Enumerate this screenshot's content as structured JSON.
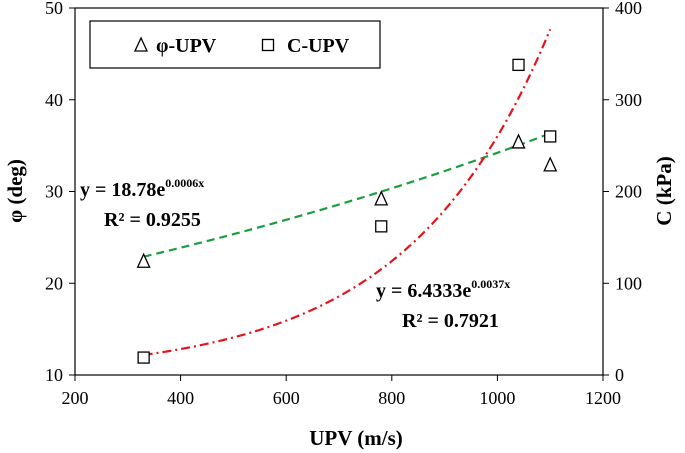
{
  "chart_data": {
    "type": "scatter",
    "xlabel": "UPV (m/s)",
    "ylabel_left": "φ (deg)",
    "ylabel_right": "C (kPa)",
    "xlim": [
      200,
      1200
    ],
    "ylim_left": [
      10,
      50
    ],
    "ylim_right": [
      0,
      400
    ],
    "x_ticks": [
      "200",
      "400",
      "600",
      "800",
      "1000",
      "1200"
    ],
    "y_left_ticks": [
      "10",
      "20",
      "30",
      "40",
      "50"
    ],
    "y_right_ticks": [
      "0",
      "100",
      "200",
      "300",
      "400"
    ],
    "grid": false,
    "legend_position": "top-left",
    "series": [
      {
        "name": "φ-UPV",
        "axis": "left",
        "marker": "triangle",
        "points": [
          {
            "x": 330,
            "y": 22.4
          },
          {
            "x": 780,
            "y": 29.2
          },
          {
            "x": 1040,
            "y": 35.4
          },
          {
            "x": 1100,
            "y": 32.9
          }
        ],
        "trendline": {
          "type": "exponential",
          "a": 18.78,
          "b": 0.0006,
          "x_range": [
            330,
            1100
          ],
          "color": "#1a9e3f",
          "style": "dashed",
          "equation_base": "y = 18.78e",
          "equation_exp": "0.0006x",
          "r2_label": "R² = 0.9255"
        }
      },
      {
        "name": "C-UPV",
        "axis": "right",
        "marker": "square",
        "points": [
          {
            "x": 330,
            "y": 19
          },
          {
            "x": 780,
            "y": 162
          },
          {
            "x": 1040,
            "y": 338
          },
          {
            "x": 1100,
            "y": 260
          }
        ],
        "trendline": {
          "type": "exponential",
          "a": 6.4333,
          "b": 0.0037,
          "x_range": [
            330,
            1100
          ],
          "color": "#e8141b",
          "style": "dash-dot",
          "equation_base": "y = 6.4333e",
          "equation_exp": "0.0037x",
          "r2_label": "R² = 0.7921"
        }
      }
    ]
  }
}
